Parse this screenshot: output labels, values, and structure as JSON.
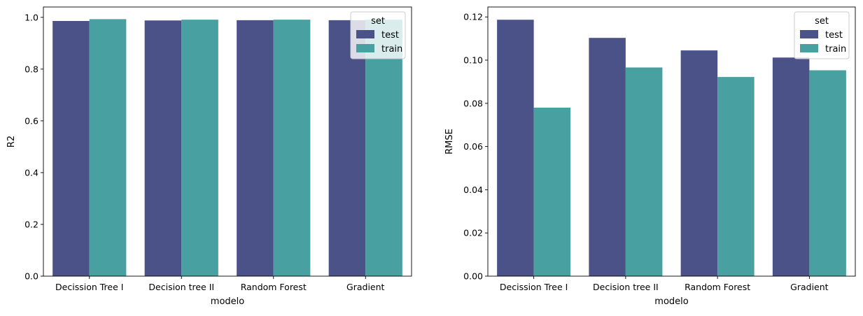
{
  "colors": {
    "test": "#4a5288",
    "train": "#48a0a0",
    "axis": "#000000"
  },
  "chart_data": [
    {
      "type": "bar",
      "categories": [
        "Decission Tree I",
        "Decision tree II",
        "Random Forest",
        "Gradient"
      ],
      "series": [
        {
          "name": "test",
          "values": [
            0.986,
            0.988,
            0.989,
            0.989
          ]
        },
        {
          "name": "train",
          "values": [
            0.993,
            0.991,
            0.991,
            0.991
          ]
        }
      ],
      "xlabel": "modelo",
      "ylabel": "R2",
      "ylim": [
        0,
        1.04
      ],
      "yticks": [
        0.0,
        0.2,
        0.4,
        0.6,
        0.8,
        1.0
      ],
      "ytick_labels": [
        "0.0",
        "0.2",
        "0.4",
        "0.6",
        "0.8",
        "1.0"
      ],
      "grid": false,
      "legend": {
        "title": "set",
        "placement": "top-right",
        "entries": [
          "test",
          "train"
        ]
      }
    },
    {
      "type": "bar",
      "categories": [
        "Decission Tree I",
        "Decision tree II",
        "Random Forest",
        "Gradient"
      ],
      "series": [
        {
          "name": "test",
          "values": [
            0.1187,
            0.1103,
            0.1045,
            0.1012
          ]
        },
        {
          "name": "train",
          "values": [
            0.078,
            0.0966,
            0.0922,
            0.0953
          ]
        }
      ],
      "xlabel": "modelo",
      "ylabel": "RMSE",
      "ylim": [
        0,
        0.1246
      ],
      "yticks": [
        0.0,
        0.02,
        0.04,
        0.06,
        0.08,
        0.1,
        0.12
      ],
      "ytick_labels": [
        "0.00",
        "0.02",
        "0.04",
        "0.06",
        "0.08",
        "0.10",
        "0.12"
      ],
      "grid": false,
      "legend": {
        "title": "set",
        "placement": "top-right",
        "entries": [
          "test",
          "train"
        ]
      }
    }
  ]
}
